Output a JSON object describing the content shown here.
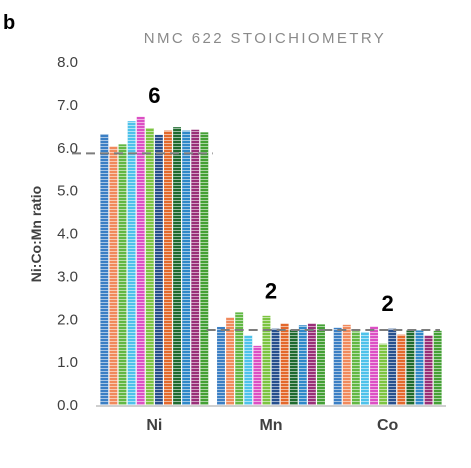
{
  "panel_label": "b",
  "chart_data": {
    "type": "bar",
    "title": "NMC 622 STOICHIOMETRY",
    "xlabel": "",
    "ylabel": "Ni:Co:Mn ratio",
    "ylim": [
      0,
      8
    ],
    "yticks": [
      "0.0",
      "1.0",
      "2.0",
      "3.0",
      "4.0",
      "5.0",
      "6.0",
      "7.0",
      "8.0"
    ],
    "grid": false,
    "categories": [
      "Ni",
      "Mn",
      "Co"
    ],
    "series": [
      {
        "color": "#3b7fc4",
        "values": [
          6.32,
          1.82,
          1.8
        ]
      },
      {
        "color": "#f0895c",
        "values": [
          6.03,
          2.04,
          1.87
        ]
      },
      {
        "color": "#62b844",
        "values": [
          6.08,
          2.16,
          1.72
        ]
      },
      {
        "color": "#4ec2ea",
        "values": [
          6.62,
          1.62,
          1.7
        ]
      },
      {
        "color": "#dc4fc4",
        "values": [
          6.72,
          1.38,
          1.83
        ]
      },
      {
        "color": "#7cc441",
        "values": [
          6.46,
          2.08,
          1.43
        ]
      },
      {
        "color": "#27508e",
        "values": [
          6.3,
          1.78,
          1.78
        ]
      },
      {
        "color": "#e3682c",
        "values": [
          6.4,
          1.9,
          1.64
        ]
      },
      {
        "color": "#1f6b2f",
        "values": [
          6.48,
          1.76,
          1.74
        ]
      },
      {
        "color": "#2f88c8",
        "values": [
          6.4,
          1.86,
          1.74
        ]
      },
      {
        "color": "#992f78",
        "values": [
          6.42,
          1.9,
          1.62
        ]
      },
      {
        "color": "#44a035",
        "values": [
          6.36,
          1.88,
          1.73
        ]
      }
    ],
    "reference_lines": [
      {
        "category": "Ni",
        "value": 5.87
      },
      {
        "category": "Mn",
        "value": 1.75
      },
      {
        "category": "Co",
        "value": 1.75
      }
    ],
    "annotations": [
      {
        "category": "Ni",
        "text": "6"
      },
      {
        "category": "Mn",
        "text": "2"
      },
      {
        "category": "Co",
        "text": "2"
      }
    ]
  }
}
